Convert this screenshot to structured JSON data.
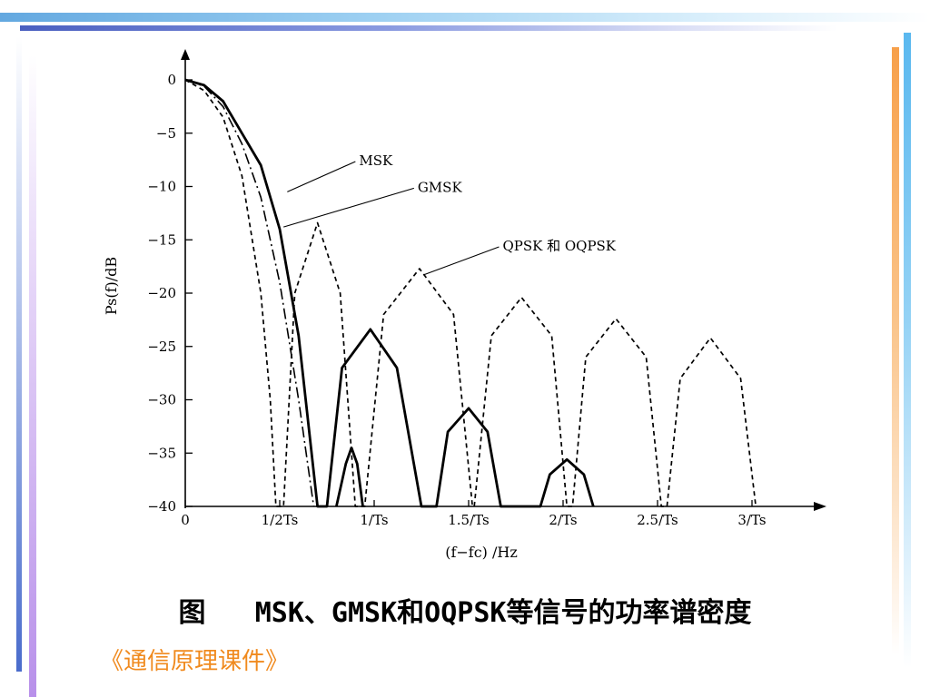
{
  "caption": "图   MSK、GMSK和OQPSK等信号的功率谱密度",
  "footer": "《通信原理课件》",
  "colors": {
    "accent_orange": "#f08a1e",
    "bar_blue": "#63a8e0",
    "bar_purple": "#b890ea"
  },
  "chart_data": {
    "type": "line",
    "title": "",
    "xlabel": "(f−fc) /Hz",
    "ylabel": "Ps(f)/dB",
    "xlim": [
      0,
      3.4
    ],
    "ylim": [
      -40,
      0
    ],
    "x_ticks": [
      {
        "value": 0,
        "label": "0"
      },
      {
        "value": 0.5,
        "label": "1/2Ts"
      },
      {
        "value": 1.0,
        "label": "1/Ts"
      },
      {
        "value": 1.5,
        "label": "1.5/Ts"
      },
      {
        "value": 2.0,
        "label": "2/Ts"
      },
      {
        "value": 2.5,
        "label": "2.5/Ts"
      },
      {
        "value": 3.0,
        "label": "3/Ts"
      }
    ],
    "y_ticks": [
      {
        "value": 0,
        "label": "0"
      },
      {
        "value": -5,
        "label": "−5"
      },
      {
        "value": -10,
        "label": "−10"
      },
      {
        "value": -15,
        "label": "−15"
      },
      {
        "value": -20,
        "label": "−20"
      },
      {
        "value": -25,
        "label": "−25"
      },
      {
        "value": -30,
        "label": "−30"
      },
      {
        "value": -35,
        "label": "−35"
      },
      {
        "value": -40,
        "label": "−40"
      }
    ],
    "series": [
      {
        "name": "MSK",
        "style": "solid",
        "points": [
          [
            0,
            0
          ],
          [
            0.1,
            -0.5
          ],
          [
            0.2,
            -2
          ],
          [
            0.3,
            -5
          ],
          [
            0.4,
            -8
          ],
          [
            0.5,
            -14
          ],
          [
            0.6,
            -24
          ],
          [
            0.7,
            -40
          ],
          [
            0.75,
            -40
          ],
          [
            0.83,
            -27
          ],
          [
            0.98,
            -23.4
          ],
          [
            1.12,
            -27
          ],
          [
            1.25,
            -40
          ],
          [
            1.33,
            -40
          ],
          [
            1.39,
            -33
          ],
          [
            1.5,
            -30.8
          ],
          [
            1.6,
            -33
          ],
          [
            1.67,
            -40
          ],
          [
            1.88,
            -40
          ],
          [
            1.93,
            -37
          ],
          [
            2.02,
            -35.6
          ],
          [
            2.11,
            -37
          ],
          [
            2.16,
            -40
          ]
        ]
      },
      {
        "name": "GMSK",
        "style": "dashdot",
        "points": [
          [
            0,
            0
          ],
          [
            0.1,
            -0.6
          ],
          [
            0.2,
            -2.5
          ],
          [
            0.3,
            -6
          ],
          [
            0.4,
            -11
          ],
          [
            0.5,
            -19
          ],
          [
            0.6,
            -30
          ],
          [
            0.68,
            -40
          ]
        ]
      },
      {
        "name": "QPSK 和 OQPSK",
        "style": "dashed",
        "points": [
          [
            0,
            0
          ],
          [
            0.1,
            -1
          ],
          [
            0.2,
            -3.5
          ],
          [
            0.3,
            -9
          ],
          [
            0.4,
            -20
          ],
          [
            0.45,
            -30
          ],
          [
            0.48,
            -40
          ],
          [
            0.52,
            -40
          ],
          [
            0.58,
            -20
          ],
          [
            0.7,
            -13.4
          ],
          [
            0.82,
            -20
          ],
          [
            0.9,
            -40
          ],
          [
            0.95,
            -40
          ],
          [
            1.05,
            -22
          ],
          [
            1.24,
            -17.7
          ],
          [
            1.42,
            -22
          ],
          [
            1.52,
            -40
          ],
          [
            1.53,
            -40
          ],
          [
            1.62,
            -24
          ],
          [
            1.78,
            -20.4
          ],
          [
            1.94,
            -24
          ],
          [
            2.02,
            -40
          ],
          [
            2.05,
            -40
          ],
          [
            2.12,
            -26
          ],
          [
            2.28,
            -22.4
          ],
          [
            2.44,
            -26
          ],
          [
            2.52,
            -40
          ],
          [
            2.55,
            -40
          ],
          [
            2.62,
            -28
          ],
          [
            2.78,
            -24.2
          ],
          [
            2.94,
            -28
          ],
          [
            3.02,
            -40
          ]
        ]
      },
      {
        "name": "",
        "style": "solid",
        "points": [
          [
            0.8,
            -40
          ],
          [
            0.85,
            -36
          ],
          [
            0.88,
            -34.5
          ],
          [
            0.91,
            -36
          ],
          [
            0.94,
            -40
          ]
        ]
      }
    ],
    "annotations": [
      {
        "text": "MSK",
        "target": [
          0.54,
          -10.5
        ],
        "label_at": [
          0.92,
          -8
        ]
      },
      {
        "text": "GMSK",
        "target": [
          0.52,
          -13.8
        ],
        "label_at": [
          1.23,
          -10.5
        ]
      },
      {
        "text": "QPSK 和 OQPSK",
        "target": [
          1.26,
          -18.3
        ],
        "label_at": [
          1.68,
          -16
        ]
      }
    ],
    "grid": false
  }
}
